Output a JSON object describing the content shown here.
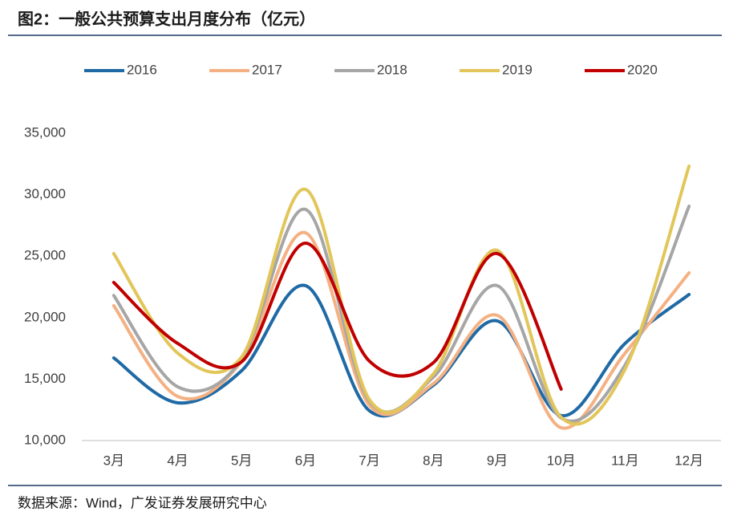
{
  "chart_data": {
    "type": "line",
    "title": "图2：一般公共预算支出月度分布（亿元）",
    "source": "数据来源：Wind，广发证券发展研究中心",
    "categories": [
      "3月",
      "4月",
      "5月",
      "6月",
      "7月",
      "8月",
      "9月",
      "10月",
      "11月",
      "12月"
    ],
    "series": [
      {
        "name": "2016",
        "color": "#1f6aa5",
        "values": [
          16720,
          13070,
          15680,
          22600,
          12420,
          14500,
          19730,
          12030,
          17900,
          21880
        ]
      },
      {
        "name": "2017",
        "color": "#f4b183",
        "values": [
          20970,
          13590,
          16460,
          26900,
          12870,
          14630,
          20180,
          11040,
          17110,
          23640
        ]
      },
      {
        "name": "2018",
        "color": "#a6a6a6",
        "values": [
          21800,
          14370,
          16590,
          28800,
          13200,
          15160,
          22600,
          11830,
          16140,
          29060
        ]
      },
      {
        "name": "2019",
        "color": "#e2c65a",
        "values": [
          25210,
          17110,
          16790,
          30430,
          13330,
          15420,
          25470,
          11890,
          15810,
          32320
        ]
      },
      {
        "name": "2020",
        "color": "#c00000",
        "values": [
          22860,
          17900,
          16400,
          26060,
          16460,
          16330,
          25210,
          14180,
          null,
          null
        ]
      }
    ],
    "ylim": [
      10000,
      35000
    ],
    "yticks": [
      {
        "value": 10000,
        "label": "10,000"
      },
      {
        "value": 15000,
        "label": "15,000"
      },
      {
        "value": 20000,
        "label": "20,000"
      },
      {
        "value": 25000,
        "label": "25,000"
      },
      {
        "value": 30000,
        "label": "30,000"
      },
      {
        "value": 35000,
        "label": "35,000"
      }
    ],
    "legend": "top",
    "grid": false
  }
}
